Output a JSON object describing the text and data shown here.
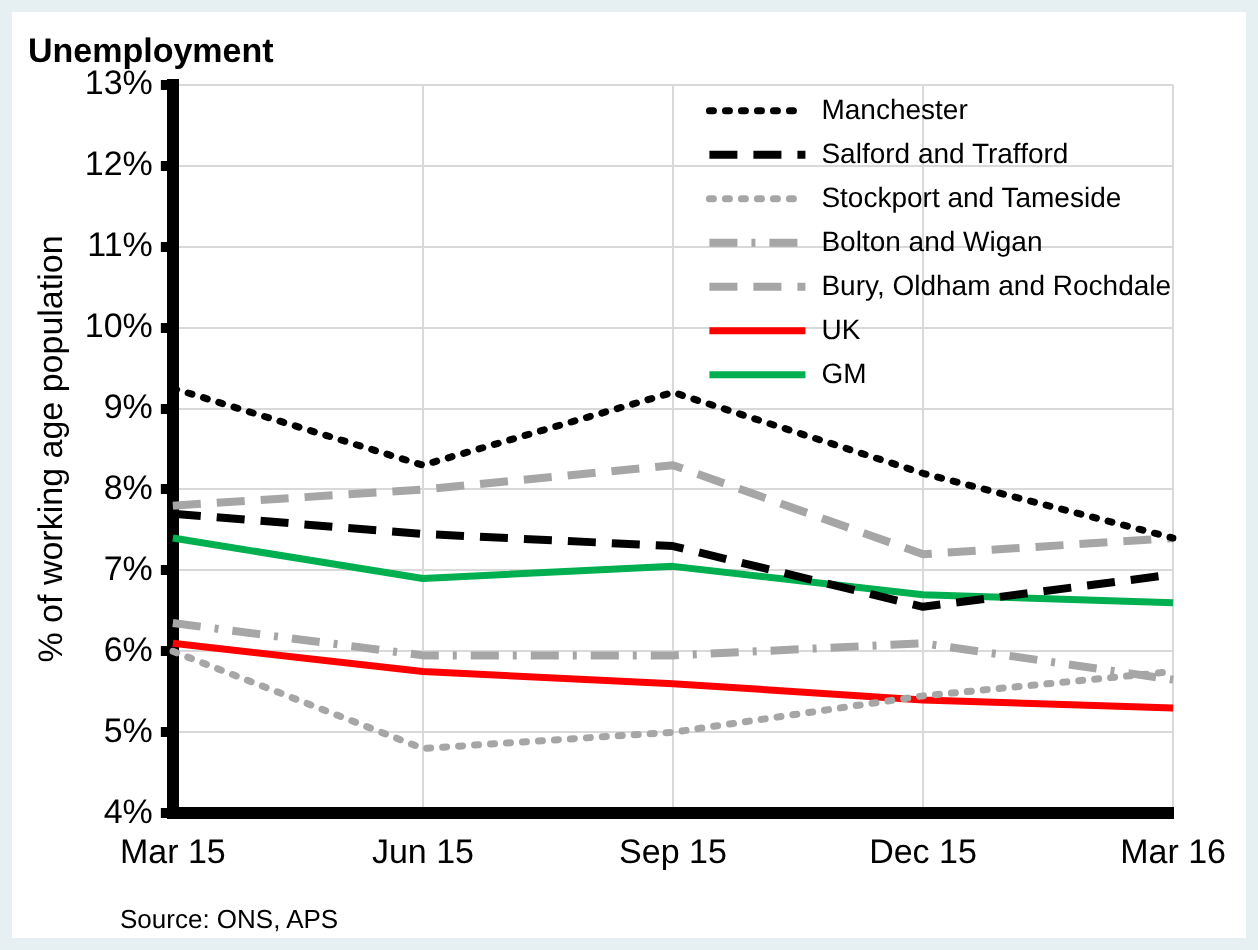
{
  "chart_data": {
    "type": "line",
    "title": "Unemployment",
    "ylabel": "% of working age population",
    "categories": [
      "Mar 15",
      "Jun 15",
      "Sep 15",
      "Dec 15",
      "Mar 16"
    ],
    "series": [
      {
        "name": "Manchester",
        "color": "#000000",
        "line_style": "dotted",
        "values": [
          9.25,
          8.3,
          9.2,
          8.2,
          7.4
        ]
      },
      {
        "name": "Salford and Trafford",
        "color": "#000000",
        "line_style": "dashed",
        "values": [
          7.7,
          7.45,
          7.3,
          6.55,
          6.95
        ]
      },
      {
        "name": "Stockport and Tameside",
        "color": "#a6a6a6",
        "line_style": "dotted",
        "values": [
          6.0,
          4.8,
          5.0,
          5.45,
          5.75
        ]
      },
      {
        "name": "Bolton and Wigan",
        "color": "#a6a6a6",
        "line_style": "dashdot",
        "values": [
          6.35,
          5.95,
          5.95,
          6.1,
          5.65
        ]
      },
      {
        "name": "Bury, Oldham and Rochdale",
        "color": "#a6a6a6",
        "line_style": "dashed",
        "values": [
          7.8,
          8.0,
          8.3,
          7.2,
          7.4
        ]
      },
      {
        "name": "UK",
        "color": "#ff0000",
        "line_style": "solid",
        "values": [
          6.1,
          5.75,
          5.6,
          5.4,
          5.3
        ]
      },
      {
        "name": "GM",
        "color": "#00b050",
        "line_style": "solid",
        "values": [
          7.4,
          6.9,
          7.05,
          6.7,
          6.6
        ]
      }
    ],
    "ylim": [
      4,
      13
    ],
    "yticks": [
      {
        "value": 4,
        "label": "4%"
      },
      {
        "value": 5,
        "label": "5%"
      },
      {
        "value": 6,
        "label": "6%"
      },
      {
        "value": 7,
        "label": "7%"
      },
      {
        "value": 8,
        "label": "8%"
      },
      {
        "value": 9,
        "label": "9%"
      },
      {
        "value": 10,
        "label": "10%"
      },
      {
        "value": 11,
        "label": "11%"
      },
      {
        "value": 12,
        "label": "12%"
      },
      {
        "value": 13,
        "label": "13%"
      }
    ],
    "grid": true,
    "legend": "top right",
    "marker": "none",
    "annotations": [
      "Source: ONS, APS"
    ]
  }
}
